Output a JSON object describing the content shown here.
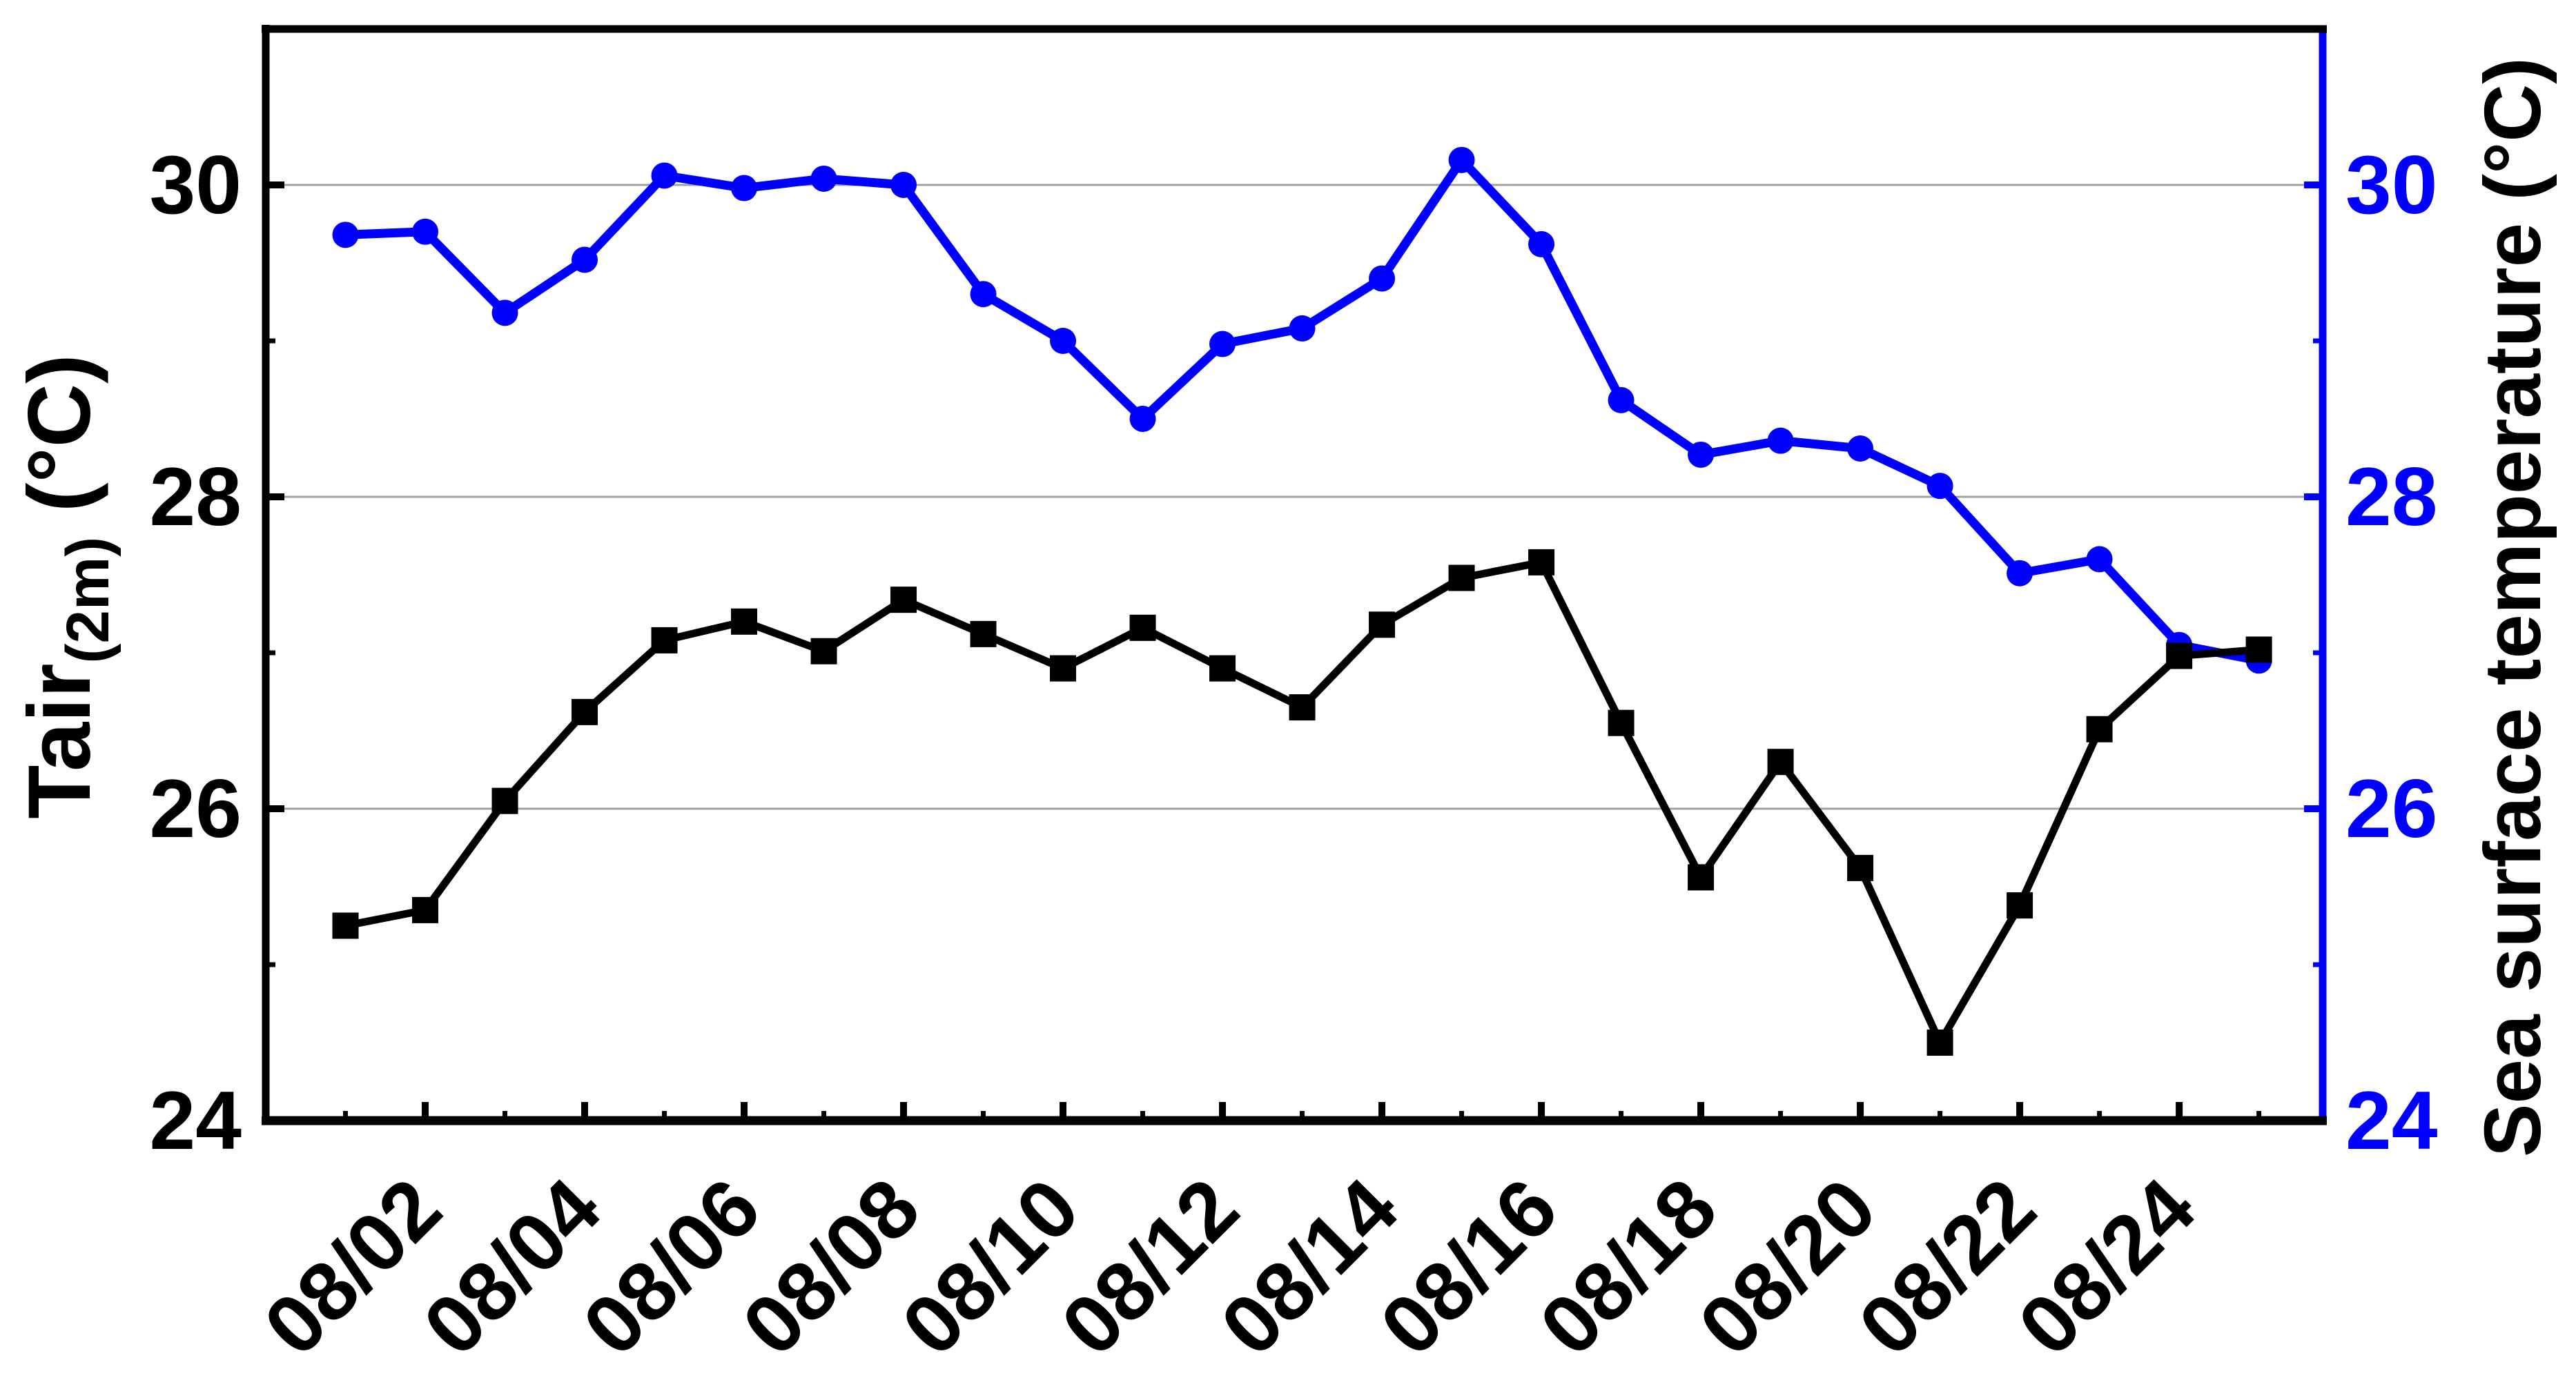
{
  "chart_data": {
    "type": "line",
    "x": [
      "08/01",
      "08/02",
      "08/03",
      "08/04",
      "08/05",
      "08/06",
      "08/07",
      "08/08",
      "08/09",
      "08/10",
      "08/11",
      "08/12",
      "08/13",
      "08/14",
      "08/15",
      "08/16",
      "08/17",
      "08/18",
      "08/19",
      "08/20",
      "08/21",
      "08/22",
      "08/23",
      "08/24",
      "08/25"
    ],
    "x_tick_labels": [
      "08/02",
      "08/04",
      "08/06",
      "08/08",
      "08/10",
      "08/12",
      "08/14",
      "08/16",
      "08/18",
      "08/20",
      "08/22",
      "08/24"
    ],
    "series": [
      {
        "name": "Tair(2m)",
        "axis": "left",
        "color": "#000000",
        "marker": "square",
        "values": [
          25.25,
          25.35,
          26.05,
          26.62,
          27.08,
          27.2,
          27.01,
          27.34,
          27.12,
          26.9,
          27.16,
          26.9,
          26.65,
          27.18,
          27.48,
          27.58,
          26.55,
          25.56,
          26.3,
          25.62,
          24.5,
          25.38,
          26.51,
          26.98,
          27.02
        ]
      },
      {
        "name": "Sea surface temperature",
        "axis": "right",
        "color": "#0000FF",
        "marker": "circle",
        "values": [
          29.68,
          29.7,
          29.18,
          29.52,
          30.06,
          29.98,
          30.04,
          30.0,
          29.3,
          29.0,
          28.5,
          28.98,
          29.08,
          29.4,
          30.16,
          29.62,
          28.62,
          28.27,
          28.36,
          28.31,
          28.07,
          27.51,
          27.6,
          27.05,
          26.95
        ]
      }
    ],
    "ylim": [
      24,
      31
    ],
    "left_axis": {
      "title_main": "Tair",
      "title_sub": "(2m)",
      "title_unit": " (°C)",
      "ticks_major": [
        24,
        26,
        28,
        30
      ],
      "ticks_minor": [
        25,
        27,
        29
      ],
      "tick_labels": [
        "24",
        "26",
        "28",
        "30"
      ],
      "color": "#000000"
    },
    "right_axis": {
      "title": "Sea surface temperature (°C)",
      "ticks_major": [
        24,
        26,
        28,
        30
      ],
      "ticks_minor": [
        25,
        27,
        29
      ],
      "tick_labels": [
        "24",
        "26",
        "28",
        "30"
      ],
      "color": "#0000FF"
    },
    "gridlines": {
      "y_values": [
        26,
        28,
        30
      ],
      "color": "#A0A0A0"
    },
    "legend": "none",
    "title": ""
  }
}
